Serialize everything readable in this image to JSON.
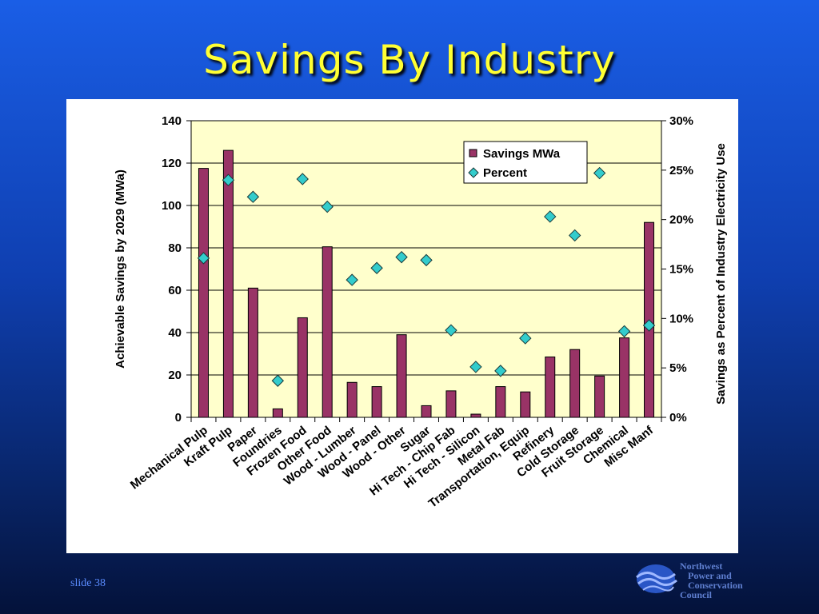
{
  "slide": {
    "title": "Savings By Industry",
    "slide_number": "slide 38",
    "logo_lines": [
      "Northwest",
      "Power and",
      "Conservation",
      "Council"
    ]
  },
  "colors": {
    "bar": "#993366",
    "marker": "#33cccc",
    "plot_bg": "#ffffcc",
    "title": "#ffff33"
  },
  "chart_data": {
    "type": "bar",
    "categories": [
      "Mechanical Pulp",
      "Kraft Pulp",
      "Paper",
      "Foundries",
      "Frozen Food",
      "Other Food",
      "Wood - Lumber",
      "Wood - Panel",
      "Wood - Other",
      "Sugar",
      "Hi Tech - Chip Fab",
      "Hi Tech - Silicon",
      "Metal Fab",
      "Transportation, Equip",
      "Refinery",
      "Cold Storage",
      "Fruit Storage",
      "Chemical",
      "Misc Manf"
    ],
    "series": [
      {
        "name": "Savings MWa",
        "type": "bar",
        "axis": "left",
        "values": [
          117.5,
          126,
          61,
          4,
          47,
          80.5,
          16.5,
          14.5,
          39,
          5.5,
          12.5,
          1.5,
          14.5,
          12,
          28.5,
          32,
          19.5,
          37.5,
          92
        ]
      },
      {
        "name": "Percent",
        "type": "scatter",
        "axis": "right",
        "values": [
          0.161,
          0.24,
          0.223,
          0.037,
          0.241,
          0.213,
          0.139,
          0.151,
          0.162,
          0.159,
          0.088,
          0.051,
          0.047,
          0.08,
          0.203,
          0.184,
          0.247,
          0.087,
          0.093
        ]
      }
    ],
    "ylabel": "Achievable Savings by 2029 (MWa)",
    "y2label": "Savings as Percent of Industry Electricity Use",
    "ylim": [
      0,
      140
    ],
    "yticks": [
      0,
      20,
      40,
      60,
      80,
      100,
      120,
      140
    ],
    "y2lim": [
      0,
      0.3
    ],
    "y2ticks": [
      "0%",
      "5%",
      "10%",
      "15%",
      "20%",
      "25%",
      "30%"
    ],
    "grid": true,
    "legend": "top-right"
  }
}
